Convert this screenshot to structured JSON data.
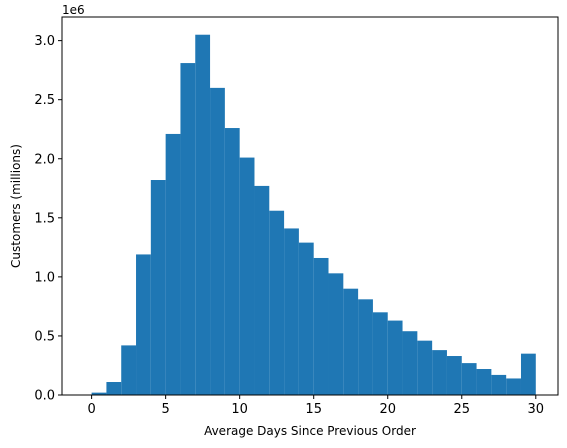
{
  "chart_data": {
    "type": "bar",
    "subtype": "histogram",
    "title": "",
    "xlabel": "Average Days Since Previous Order",
    "ylabel": "Customers (millions)",
    "y_offset_label": "1e6",
    "xlim": [
      -2,
      31.5
    ],
    "ylim": [
      0,
      3.2
    ],
    "x_ticks": [
      0,
      5,
      10,
      15,
      20,
      25,
      30
    ],
    "y_ticks": [
      0.0,
      0.5,
      1.0,
      1.5,
      2.0,
      2.5,
      3.0
    ],
    "x_tick_labels": [
      "0",
      "5",
      "10",
      "15",
      "20",
      "25",
      "30"
    ],
    "y_tick_labels": [
      "0.0",
      "0.5",
      "1.0",
      "1.5",
      "2.0",
      "2.5",
      "3.0"
    ],
    "grid": false,
    "legend": "none",
    "bar_color": "#1f77b4",
    "bin_edges": [
      0,
      1,
      2,
      3,
      4,
      5,
      6,
      7,
      8,
      9,
      10,
      11,
      12,
      13,
      14,
      15,
      16,
      17,
      18,
      19,
      20,
      21,
      22,
      23,
      24,
      25,
      26,
      27,
      28,
      29,
      30
    ],
    "values": [
      0.02,
      0.11,
      0.42,
      1.19,
      1.82,
      2.21,
      2.81,
      3.05,
      2.6,
      2.26,
      2.01,
      1.77,
      1.56,
      1.41,
      1.29,
      1.16,
      1.03,
      0.9,
      0.81,
      0.7,
      0.63,
      0.54,
      0.46,
      0.38,
      0.33,
      0.27,
      0.22,
      0.17,
      0.14,
      0.35
    ]
  }
}
